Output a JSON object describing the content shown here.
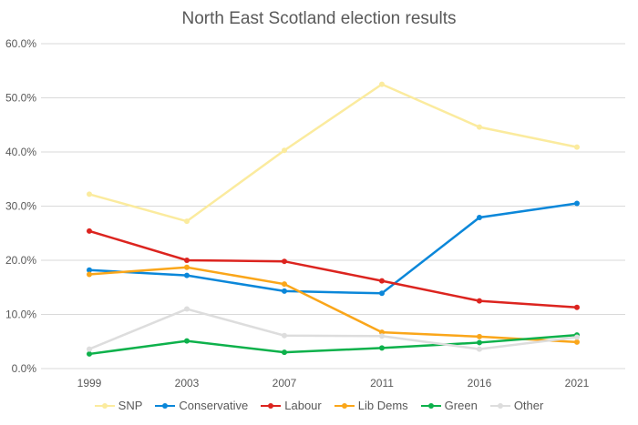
{
  "chart_data": {
    "type": "line",
    "title": "North East Scotland election results",
    "categories": [
      "1999",
      "2003",
      "2007",
      "2011",
      "2016",
      "2021"
    ],
    "ylim": [
      0,
      60
    ],
    "yticks": [
      "0.0%",
      "10.0%",
      "20.0%",
      "30.0%",
      "40.0%",
      "50.0%",
      "60.0%"
    ],
    "grid": true,
    "legend": "bottom",
    "series": [
      {
        "name": "SNP",
        "color": "#FBEB9E",
        "values": [
          32.2,
          27.2,
          40.3,
          52.5,
          44.6,
          40.9
        ]
      },
      {
        "name": "Conservative",
        "color": "#0B87D9",
        "values": [
          18.2,
          17.2,
          14.3,
          13.9,
          27.9,
          30.5
        ]
      },
      {
        "name": "Labour",
        "color": "#DC241F",
        "values": [
          25.4,
          20.0,
          19.8,
          16.2,
          12.5,
          11.3
        ]
      },
      {
        "name": "Lib Dems",
        "color": "#FAA61A",
        "values": [
          17.4,
          18.7,
          15.6,
          6.7,
          5.9,
          4.9
        ]
      },
      {
        "name": "Green",
        "color": "#0DB14B",
        "values": [
          2.7,
          5.1,
          3.0,
          3.8,
          4.8,
          6.2
        ]
      },
      {
        "name": "Other",
        "color": "#DDDDDD",
        "values": [
          3.6,
          11.0,
          6.1,
          6.0,
          3.6,
          5.8
        ]
      }
    ]
  }
}
